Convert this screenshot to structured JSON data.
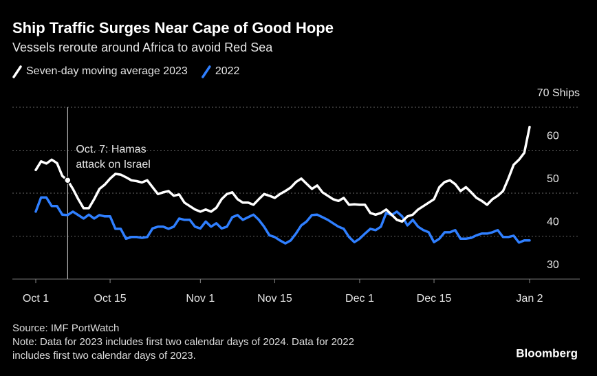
{
  "chart_data": {
    "type": "line",
    "title": "Ship Traffic Surges Near Cape of Good Hope",
    "subtitle": "Vessels reroute around Africa to avoid Red Sea",
    "annotation": [
      "Oct. 7: Hamas",
      "attack on Israel"
    ],
    "source": "Source: IMF PortWatch",
    "note": [
      "Note: Data for 2023 includes first two calendar days of 2024. Data for 2022",
      "includes first two calendar days of 2023."
    ],
    "brand": "Bloomberg",
    "categories": [
      "Oct 1",
      null,
      null,
      null,
      null,
      null,
      null,
      null,
      null,
      null,
      null,
      null,
      null,
      null,
      "Oct 15",
      null,
      null,
      null,
      null,
      null,
      null,
      null,
      null,
      null,
      null,
      null,
      null,
      null,
      null,
      null,
      null,
      "Nov 1",
      null,
      null,
      null,
      null,
      null,
      null,
      null,
      null,
      null,
      null,
      null,
      null,
      null,
      "Nov 15",
      null,
      null,
      null,
      null,
      null,
      null,
      null,
      null,
      null,
      null,
      null,
      null,
      null,
      null,
      null,
      "Dec 1",
      null,
      null,
      null,
      null,
      null,
      null,
      null,
      null,
      null,
      null,
      null,
      null,
      null,
      "Dec 15",
      null,
      null,
      null,
      null,
      null,
      null,
      null,
      null,
      null,
      null,
      null,
      null,
      null,
      null,
      null,
      null,
      null,
      "Jan 2"
    ],
    "series": [
      {
        "name": "Seven-day moving average 2023",
        "color": "#ffffff",
        "values": [
          55.4,
          57.4,
          56.9,
          57.8,
          57,
          54,
          53,
          51,
          48.6,
          46.5,
          46.5,
          48.6,
          51,
          52,
          53.4,
          54.5,
          54.3,
          53.7,
          53,
          52.8,
          52.5,
          53,
          51.4,
          49.8,
          50.2,
          50.5,
          49.4,
          49.7,
          47.8,
          47,
          46.2,
          45.7,
          46.2,
          45.7,
          46.6,
          48.6,
          49.8,
          50.2,
          48.6,
          47.8,
          47.8,
          47.3,
          48.6,
          49.8,
          49.4,
          48.9,
          49.8,
          50.5,
          51.3,
          52.6,
          53.4,
          52.2,
          51,
          51.8,
          50.2,
          49.4,
          48.6,
          48.2,
          48.9,
          47.3,
          47.4,
          47.3,
          47.3,
          45.4,
          45,
          45.4,
          46.2,
          45,
          43.8,
          43.4,
          44.6,
          45,
          46.2,
          47,
          47.8,
          48.6,
          51.4,
          52.6,
          53,
          52.1,
          50.5,
          51.4,
          50.2,
          48.9,
          48.2,
          47.3,
          48.6,
          49.4,
          50.5,
          53.4,
          56.6,
          57.8,
          59.4,
          65.4
        ]
      },
      {
        "name": "2022",
        "color": "#2f7fff",
        "values": [
          45.7,
          49,
          49,
          47,
          47,
          45,
          44.9,
          45.7,
          44.9,
          44.1,
          45,
          44.1,
          44.9,
          44.6,
          44.6,
          41.7,
          41.7,
          39.4,
          39.8,
          39.8,
          39.6,
          39.8,
          41.8,
          42.2,
          42.2,
          41.7,
          42.2,
          44.1,
          43.8,
          43.8,
          42.2,
          41.8,
          43.4,
          42.2,
          43,
          41.8,
          42.2,
          44.4,
          44.9,
          43.8,
          44.4,
          45,
          43.8,
          42.2,
          40.2,
          39.8,
          39,
          38.3,
          39,
          40.6,
          42.5,
          43.4,
          44.9,
          45,
          44.4,
          43.8,
          43,
          42.2,
          41.7,
          39.8,
          38.6,
          39.4,
          40.6,
          41.7,
          41.4,
          42.2,
          45.4,
          44.9,
          45.7,
          44.6,
          42.5,
          43.8,
          42.2,
          41.4,
          40.9,
          38.6,
          39.4,
          40.9,
          40.9,
          41.4,
          39.4,
          39.4,
          39.6,
          40.2,
          40.6,
          40.6,
          40.9,
          41.4,
          39.8,
          39.8,
          40.1,
          38.5,
          39,
          39
        ]
      }
    ],
    "ylim": [
      30,
      70
    ],
    "yticks": [
      30,
      40,
      50,
      60,
      {
        "value": 70,
        "label": "70 Ships"
      }
    ],
    "grid": true
  }
}
